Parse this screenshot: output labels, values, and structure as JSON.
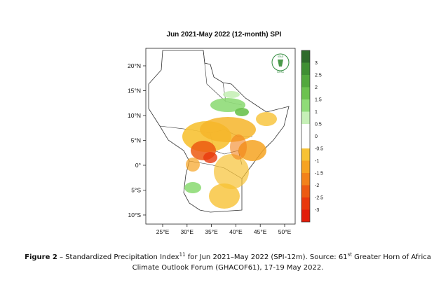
{
  "map": {
    "title": "Jun 2021-May 2022  (12-month) SPI",
    "lon_ticks": [
      "25°E",
      "30°E",
      "35°E",
      "40°E",
      "45°E",
      "50°E"
    ],
    "lat_ticks": [
      "20°N",
      "15°N",
      "10°N",
      "5°N",
      "0°",
      "5°S",
      "10°S"
    ],
    "logo": {
      "top_text": "IGAD",
      "bottom_text": "ICPAC"
    }
  },
  "colorbar": {
    "labels": [
      "3",
      "2.5",
      "2",
      "1.5",
      "1",
      "0.5",
      "0",
      "-0.5",
      "-1",
      "-1.5",
      "-2",
      "-2.5",
      "-3"
    ],
    "colors": [
      "#2e6b2b",
      "#3f8f33",
      "#52a83d",
      "#6cc24f",
      "#8fdc78",
      "#c6f0b7",
      "#ffffff",
      "#ffffff",
      "#f7c234",
      "#f6a321",
      "#f2821a",
      "#ec5a12",
      "#e8380d",
      "#e21d0b"
    ]
  },
  "caption": {
    "fig_label": "Figure 2",
    "sep": " – Standardized Precipitation Index",
    "footnote": "11",
    "rest1": "  for Jun 2021–May 2022 (SPI-12m). Source: 61",
    "st": "st",
    "rest2": " Greater Horn of Africa Climate Outlook Forum (GHACOF61), 17-19 May 2022."
  }
}
